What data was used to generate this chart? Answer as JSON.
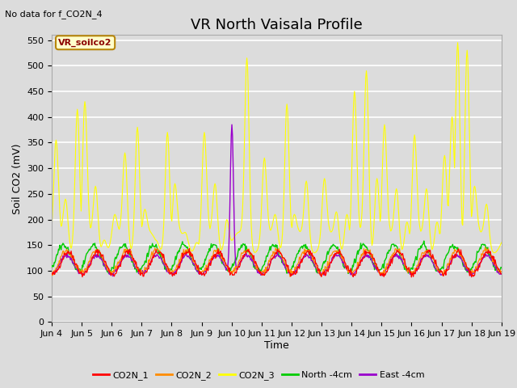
{
  "title": "VR North Vaisala Profile",
  "subtitle": "No data for f_CO2N_4",
  "ylabel": "Soil CO2 (mV)",
  "xlabel": "Time",
  "annotation_box": "VR_soilco2",
  "legend_entries": [
    "CO2N_1",
    "CO2N_2",
    "CO2N_3",
    "North -4cm",
    "East -4cm"
  ],
  "legend_colors": [
    "#ff0000",
    "#ff8c00",
    "#ffff00",
    "#00cc00",
    "#9900cc"
  ],
  "line_colors": {
    "CO2N_1": "#ff0000",
    "CO2N_2": "#ff8c00",
    "CO2N_3": "#ffff00",
    "North_4cm": "#00cc00",
    "East_4cm": "#9900cc"
  },
  "ylim": [
    0,
    560
  ],
  "yticks": [
    0,
    50,
    100,
    150,
    200,
    250,
    300,
    350,
    400,
    450,
    500,
    550
  ],
  "background_color": "#dcdcdc",
  "plot_bg_color": "#dcdcdc",
  "grid_color": "#ffffff",
  "title_fontsize": 13,
  "axis_label_fontsize": 9,
  "tick_fontsize": 8,
  "legend_fontsize": 8,
  "x_start_day": 4,
  "x_end_day": 19,
  "x_tick_days": [
    4,
    5,
    6,
    7,
    8,
    9,
    10,
    11,
    12,
    13,
    14,
    15,
    16,
    17,
    18,
    19
  ]
}
